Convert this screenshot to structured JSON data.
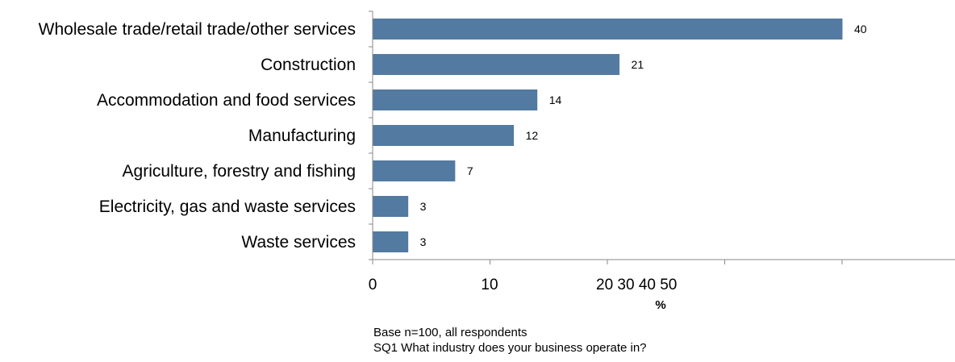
{
  "chart_data": {
    "type": "bar",
    "orientation": "horizontal",
    "categories": [
      "Wholesale trade/retail trade/other services",
      "Construction",
      "Accommodation and food services",
      "Manufacturing",
      "Agriculture, forestry and fishing",
      "Electricity, gas and waste services",
      "Waste services"
    ],
    "values": [
      40,
      21,
      14,
      12,
      7,
      3,
      3
    ],
    "data_labels": [
      "40",
      "21",
      "14",
      "12",
      "7",
      "3",
      "3"
    ],
    "xlabel": "%",
    "xlim": [
      0,
      50
    ],
    "x_ticks": [
      0,
      10
    ],
    "x_tick_label_cluster": "20 30 40 50",
    "bar_color": "#537aa0",
    "grid": false,
    "legend": "none"
  },
  "notes": {
    "base": "Base n=100, all respondents",
    "question": "SQ1 What industry does your business operate in?"
  }
}
